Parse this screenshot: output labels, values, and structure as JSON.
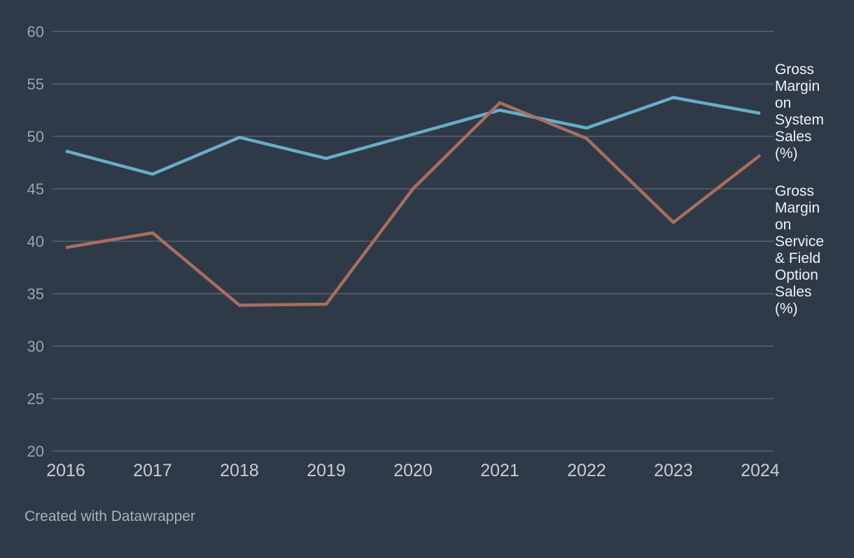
{
  "chart_data": {
    "type": "line",
    "x": [
      2016,
      2017,
      2018,
      2019,
      2020,
      2021,
      2022,
      2023,
      2024
    ],
    "series": [
      {
        "name": "Gross Margin on System Sales (%)",
        "color": "#68adc9",
        "values": [
          48.6,
          46.4,
          49.9,
          47.9,
          50.2,
          52.5,
          50.8,
          53.7,
          52.2
        ]
      },
      {
        "name": "Gross Margin on Service & Field Option Sales (%)",
        "color": "#a86e5e",
        "values": [
          39.4,
          40.8,
          33.9,
          34.0,
          45.0,
          53.2,
          49.8,
          41.8,
          48.2
        ]
      }
    ],
    "title": "",
    "xlabel": "",
    "ylabel": "",
    "ylim": [
      20,
      60
    ],
    "yticks": [
      20,
      25,
      30,
      35,
      40,
      45,
      50,
      55,
      60
    ],
    "grid": true,
    "legend_position": "right"
  },
  "footer": {
    "credit": "Created with Datawrapper"
  },
  "colors": {
    "background": "#2f3a48",
    "grid": "#4d5765",
    "axis_tick_text": "#9aa3ae",
    "x_label_text": "#c8cdd5",
    "legend_text": "#eef2f5",
    "footer_text": "#a9b1ba"
  }
}
